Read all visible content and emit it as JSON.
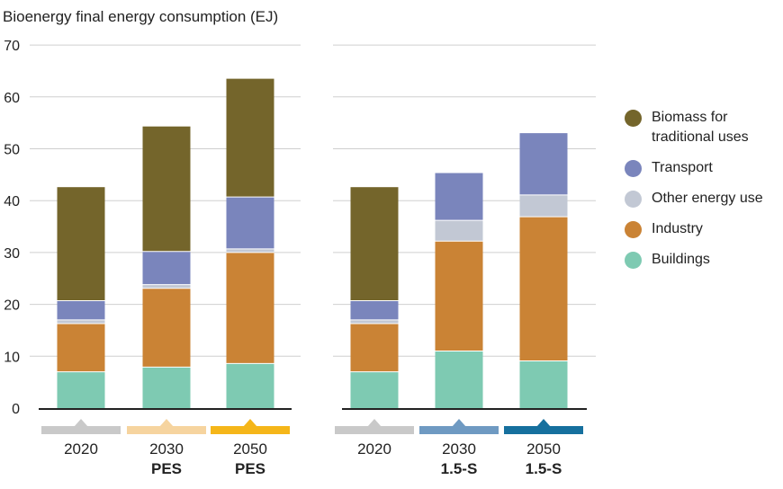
{
  "chart_data": {
    "type": "bar",
    "stacked": true,
    "title": "Bioenergy final energy consumption (EJ)",
    "ylim": [
      0,
      70
    ],
    "yticks": [
      0,
      10,
      20,
      30,
      40,
      50,
      60,
      70
    ],
    "grid": true,
    "legend_position": "right",
    "series_names": [
      "Buildings",
      "Industry",
      "Other energy use",
      "Transport",
      "Biomass for traditional uses"
    ],
    "series_colors": [
      "#7ecab2",
      "#ca8335",
      "#c2c8d4",
      "#7a85bc",
      "#74652b"
    ],
    "legend_order": [
      4,
      3,
      2,
      1,
      0
    ],
    "panels": [
      {
        "categories": [
          {
            "year": "2020",
            "scenario": "",
            "marker_color": "#c9c9c9"
          },
          {
            "year": "2030",
            "scenario": "PES",
            "marker_color": "#f6d49f"
          },
          {
            "year": "2050",
            "scenario": "PES",
            "marker_color": "#f5b619"
          }
        ],
        "stacks": [
          [
            7.0,
            9.3,
            0.7,
            3.7,
            21.9
          ],
          [
            7.9,
            15.2,
            0.7,
            6.4,
            24.1
          ],
          [
            8.6,
            21.4,
            0.7,
            10.0,
            22.8
          ]
        ]
      },
      {
        "categories": [
          {
            "year": "2020",
            "scenario": "",
            "marker_color": "#c9c9c9"
          },
          {
            "year": "2030",
            "scenario": "1.5-S",
            "marker_color": "#6f9ac2"
          },
          {
            "year": "2050",
            "scenario": "1.5-S",
            "marker_color": "#16709e"
          }
        ],
        "stacks": [
          [
            7.0,
            9.3,
            0.7,
            3.7,
            21.9
          ],
          [
            11.0,
            21.2,
            4.0,
            9.2,
            0
          ],
          [
            9.1,
            27.8,
            4.2,
            12.0,
            0
          ]
        ]
      }
    ]
  }
}
